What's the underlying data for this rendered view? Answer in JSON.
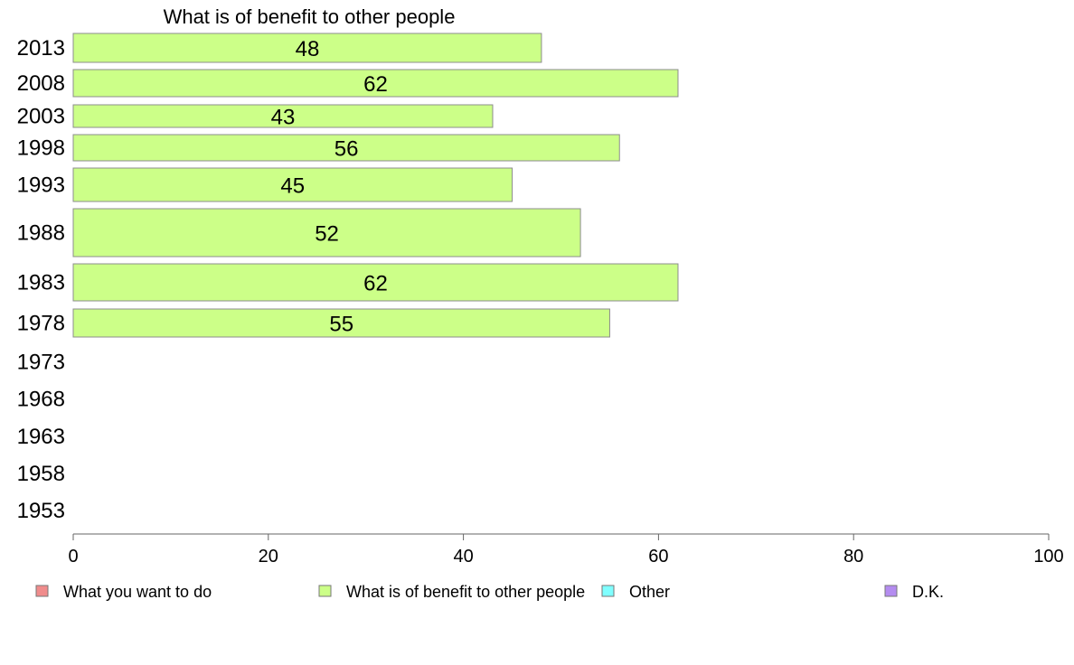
{
  "chart_data": {
    "type": "bar",
    "orientation": "horizontal",
    "title": "What is of benefit to other people",
    "categories": [
      "2013",
      "2008",
      "2003",
      "1998",
      "1993",
      "1988",
      "1983",
      "1978",
      "1973",
      "1968",
      "1963",
      "1958",
      "1953"
    ],
    "series": [
      {
        "name": "What is of benefit to other people",
        "color": "#ccff88",
        "values": [
          48,
          62,
          43,
          56,
          45,
          52,
          62,
          55,
          null,
          null,
          null,
          null,
          null
        ]
      }
    ],
    "xlim": [
      0,
      100
    ],
    "x_ticks": [
      "0",
      "20",
      "40",
      "60",
      "80",
      "100"
    ],
    "grid": false,
    "legend": {
      "placement": "bottom",
      "entries": [
        {
          "label": "What you want to do",
          "color": "#f08c8c"
        },
        {
          "label": "What is of benefit to other people",
          "color": "#ccff88"
        },
        {
          "label": "Other",
          "color": "#80ffff"
        },
        {
          "label": "D.K.",
          "color": "#b48cf0"
        }
      ]
    }
  }
}
